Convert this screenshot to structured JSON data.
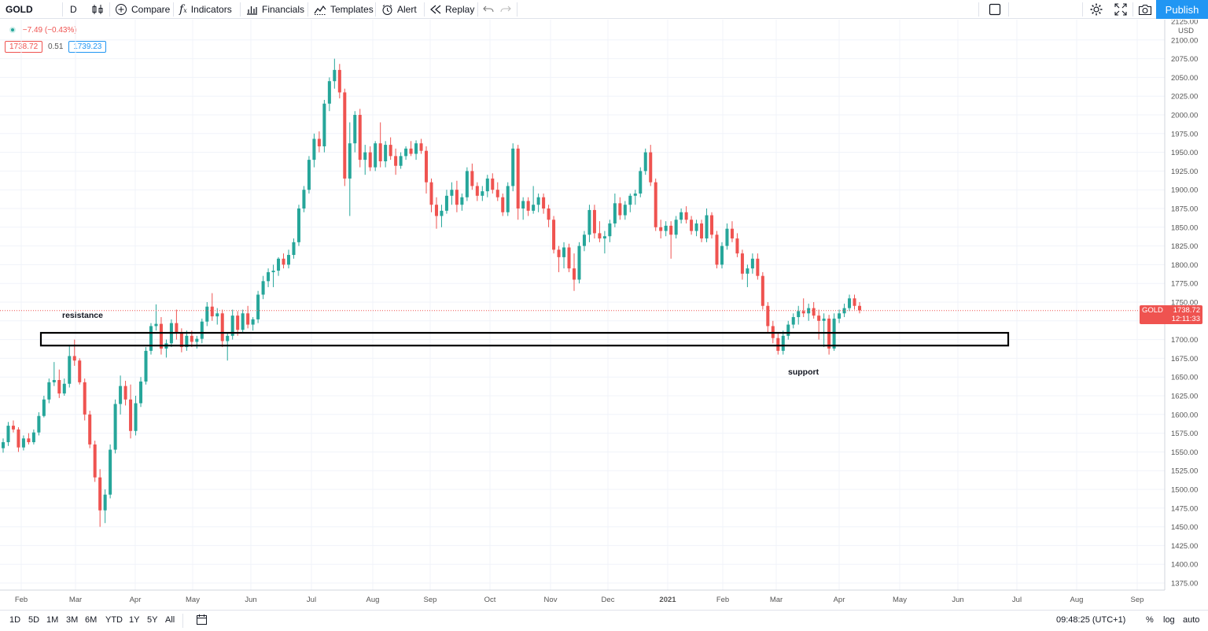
{
  "toolbar": {
    "symbol": "GOLD",
    "interval": "D",
    "compare": "Compare",
    "indicators": "Indicators",
    "financials": "Financials",
    "templates": "Templates",
    "alert": "Alert",
    "replay": "Replay",
    "publish": "Publish"
  },
  "legend": {
    "change": "−7.49 (−0.43%)",
    "bid": "1738.72",
    "spread": "0.51",
    "ask": "1739.23"
  },
  "price_axis": {
    "currency": "USD",
    "ticks": [
      "2125.00",
      "2100.00",
      "2075.00",
      "2050.00",
      "2025.00",
      "2000.00",
      "1975.00",
      "1950.00",
      "1925.00",
      "1900.00",
      "1875.00",
      "1850.00",
      "1825.00",
      "1800.00",
      "1775.00",
      "1750.00",
      "1725.00",
      "1700.00",
      "1675.00",
      "1650.00",
      "1625.00",
      "1600.00",
      "1575.00",
      "1550.00",
      "1525.00",
      "1500.00",
      "1475.00",
      "1450.00",
      "1425.00",
      "1400.00",
      "1375.00"
    ]
  },
  "time_axis": {
    "labels": [
      "Feb",
      "Mar",
      "Apr",
      "May",
      "Jun",
      "Jul",
      "Aug",
      "Sep",
      "Oct",
      "Nov",
      "Dec",
      "2021",
      "Feb",
      "Mar",
      "Apr",
      "May",
      "Jun",
      "Jul",
      "Aug",
      "Sep"
    ]
  },
  "price_tag": {
    "symbol": "GOLD",
    "price": "1738.72",
    "countdown": "12:11:33"
  },
  "annotations": {
    "resistance": "resistance",
    "support": "support"
  },
  "bottom": {
    "ranges": [
      "1D",
      "5D",
      "1M",
      "3M",
      "6M",
      "YTD",
      "1Y",
      "5Y",
      "All"
    ],
    "time": "09:48:25 (UTC+1)",
    "percent": "%",
    "log": "log",
    "auto": "auto"
  },
  "colors": {
    "up": "#26a69a",
    "down": "#ef5350",
    "accent": "#2196f3"
  },
  "chart_data": {
    "type": "candlestick",
    "series": [
      {
        "name": "GOLD",
        "values": [
          [
            1555,
            1568,
            1549,
            1563
          ],
          [
            1563,
            1590,
            1558,
            1585
          ],
          [
            1585,
            1592,
            1576,
            1580
          ],
          [
            1580,
            1583,
            1550,
            1556
          ],
          [
            1556,
            1572,
            1552,
            1568
          ],
          [
            1568,
            1575,
            1560,
            1563
          ],
          [
            1563,
            1580,
            1560,
            1576
          ],
          [
            1576,
            1603,
            1572,
            1598
          ],
          [
            1598,
            1625,
            1596,
            1620
          ],
          [
            1620,
            1648,
            1615,
            1643
          ],
          [
            1643,
            1670,
            1638,
            1646
          ],
          [
            1646,
            1660,
            1622,
            1628
          ],
          [
            1628,
            1648,
            1625,
            1641
          ],
          [
            1641,
            1693,
            1636,
            1678
          ],
          [
            1678,
            1700,
            1665,
            1672
          ],
          [
            1672,
            1675,
            1640,
            1643
          ],
          [
            1643,
            1648,
            1592,
            1600
          ],
          [
            1600,
            1605,
            1555,
            1560
          ],
          [
            1560,
            1565,
            1510,
            1516
          ],
          [
            1516,
            1527,
            1450,
            1472
          ],
          [
            1472,
            1500,
            1455,
            1493
          ],
          [
            1493,
            1560,
            1488,
            1553
          ],
          [
            1553,
            1620,
            1548,
            1614
          ],
          [
            1614,
            1652,
            1600,
            1638
          ],
          [
            1638,
            1645,
            1612,
            1620
          ],
          [
            1620,
            1640,
            1568,
            1578
          ],
          [
            1578,
            1625,
            1572,
            1615
          ],
          [
            1615,
            1650,
            1610,
            1644
          ],
          [
            1644,
            1690,
            1640,
            1685
          ],
          [
            1685,
            1722,
            1680,
            1718
          ],
          [
            1718,
            1747,
            1712,
            1721
          ],
          [
            1721,
            1730,
            1680,
            1688
          ],
          [
            1688,
            1700,
            1676,
            1695
          ],
          [
            1695,
            1727,
            1690,
            1722
          ],
          [
            1722,
            1740,
            1700,
            1708
          ],
          [
            1708,
            1715,
            1683,
            1690
          ],
          [
            1690,
            1712,
            1685,
            1705
          ],
          [
            1705,
            1712,
            1690,
            1697
          ],
          [
            1697,
            1705,
            1688,
            1701
          ],
          [
            1701,
            1728,
            1695,
            1724
          ],
          [
            1724,
            1750,
            1718,
            1744
          ],
          [
            1744,
            1762,
            1725,
            1731
          ],
          [
            1731,
            1742,
            1720,
            1735
          ],
          [
            1735,
            1740,
            1690,
            1698
          ],
          [
            1698,
            1710,
            1672,
            1705
          ],
          [
            1705,
            1740,
            1700,
            1732
          ],
          [
            1732,
            1738,
            1705,
            1713
          ],
          [
            1713,
            1740,
            1708,
            1735
          ],
          [
            1735,
            1745,
            1715,
            1720
          ],
          [
            1720,
            1730,
            1712,
            1727
          ],
          [
            1727,
            1765,
            1722,
            1760
          ],
          [
            1760,
            1785,
            1754,
            1778
          ],
          [
            1778,
            1795,
            1770,
            1790
          ],
          [
            1790,
            1800,
            1770,
            1792
          ],
          [
            1792,
            1810,
            1785,
            1808
          ],
          [
            1808,
            1815,
            1795,
            1800
          ],
          [
            1800,
            1820,
            1795,
            1813
          ],
          [
            1813,
            1835,
            1808,
            1830
          ],
          [
            1830,
            1880,
            1825,
            1875
          ],
          [
            1875,
            1905,
            1870,
            1900
          ],
          [
            1900,
            1945,
            1895,
            1940
          ],
          [
            1940,
            1975,
            1930,
            1968
          ],
          [
            1968,
            1978,
            1950,
            1958
          ],
          [
            1958,
            2020,
            1950,
            2015
          ],
          [
            2015,
            2050,
            2005,
            2045
          ],
          [
            2045,
            2075,
            2035,
            2060
          ],
          [
            2060,
            2068,
            2022,
            2030
          ],
          [
            2030,
            2035,
            1905,
            1915
          ],
          [
            1915,
            1990,
            1865,
            1962
          ],
          [
            1962,
            2005,
            1950,
            2000
          ],
          [
            2000,
            2008,
            1930,
            1940
          ],
          [
            1940,
            1960,
            1920,
            1950
          ],
          [
            1950,
            1958,
            1925,
            1930
          ],
          [
            1930,
            1965,
            1925,
            1962
          ],
          [
            1962,
            1990,
            1930,
            1938
          ],
          [
            1938,
            1965,
            1930,
            1960
          ],
          [
            1960,
            1970,
            1940,
            1945
          ],
          [
            1945,
            1955,
            1920,
            1932
          ],
          [
            1932,
            1950,
            1928,
            1945
          ],
          [
            1945,
            1958,
            1940,
            1955
          ],
          [
            1955,
            1965,
            1945,
            1948
          ],
          [
            1948,
            1966,
            1940,
            1962
          ],
          [
            1962,
            1968,
            1948,
            1952
          ],
          [
            1952,
            1958,
            1895,
            1910
          ],
          [
            1910,
            1915,
            1870,
            1880
          ],
          [
            1880,
            1890,
            1848,
            1865
          ],
          [
            1865,
            1880,
            1850,
            1872
          ],
          [
            1872,
            1900,
            1868,
            1892
          ],
          [
            1892,
            1910,
            1880,
            1900
          ],
          [
            1900,
            1912,
            1870,
            1880
          ],
          [
            1880,
            1895,
            1872,
            1890
          ],
          [
            1890,
            1930,
            1885,
            1925
          ],
          [
            1925,
            1935,
            1900,
            1905
          ],
          [
            1905,
            1910,
            1885,
            1892
          ],
          [
            1892,
            1905,
            1885,
            1898
          ],
          [
            1898,
            1920,
            1890,
            1915
          ],
          [
            1915,
            1922,
            1895,
            1900
          ],
          [
            1900,
            1910,
            1885,
            1890
          ],
          [
            1890,
            1895,
            1865,
            1870
          ],
          [
            1870,
            1910,
            1865,
            1905
          ],
          [
            1905,
            1962,
            1898,
            1955
          ],
          [
            1955,
            1960,
            1860,
            1875
          ],
          [
            1875,
            1890,
            1860,
            1885
          ],
          [
            1885,
            1890,
            1865,
            1872
          ],
          [
            1872,
            1905,
            1868,
            1880
          ],
          [
            1880,
            1895,
            1870,
            1890
          ],
          [
            1890,
            1895,
            1868,
            1875
          ],
          [
            1875,
            1880,
            1850,
            1860
          ],
          [
            1860,
            1865,
            1815,
            1820
          ],
          [
            1820,
            1825,
            1790,
            1810
          ],
          [
            1810,
            1830,
            1795,
            1823
          ],
          [
            1823,
            1828,
            1790,
            1795
          ],
          [
            1795,
            1815,
            1765,
            1780
          ],
          [
            1780,
            1830,
            1775,
            1825
          ],
          [
            1825,
            1845,
            1818,
            1840
          ],
          [
            1840,
            1880,
            1830,
            1873
          ],
          [
            1873,
            1880,
            1835,
            1842
          ],
          [
            1842,
            1858,
            1830,
            1835
          ],
          [
            1835,
            1845,
            1815,
            1838
          ],
          [
            1838,
            1860,
            1830,
            1855
          ],
          [
            1855,
            1895,
            1850,
            1882
          ],
          [
            1882,
            1890,
            1860,
            1866
          ],
          [
            1866,
            1885,
            1860,
            1880
          ],
          [
            1880,
            1895,
            1870,
            1892
          ],
          [
            1892,
            1900,
            1880,
            1895
          ],
          [
            1895,
            1930,
            1890,
            1925
          ],
          [
            1925,
            1955,
            1920,
            1950
          ],
          [
            1950,
            1960,
            1905,
            1910
          ],
          [
            1910,
            1915,
            1845,
            1850
          ],
          [
            1850,
            1860,
            1835,
            1845
          ],
          [
            1845,
            1858,
            1838,
            1852
          ],
          [
            1852,
            1858,
            1808,
            1840
          ],
          [
            1840,
            1865,
            1835,
            1860
          ],
          [
            1860,
            1875,
            1855,
            1870
          ],
          [
            1870,
            1878,
            1855,
            1860
          ],
          [
            1860,
            1865,
            1840,
            1845
          ],
          [
            1845,
            1860,
            1838,
            1855
          ],
          [
            1855,
            1860,
            1830,
            1835
          ],
          [
            1835,
            1875,
            1830,
            1866
          ],
          [
            1866,
            1870,
            1835,
            1840
          ],
          [
            1840,
            1845,
            1795,
            1800
          ],
          [
            1800,
            1830,
            1795,
            1825
          ],
          [
            1825,
            1855,
            1820,
            1848
          ],
          [
            1848,
            1858,
            1830,
            1835
          ],
          [
            1835,
            1842,
            1810,
            1815
          ],
          [
            1815,
            1820,
            1780,
            1788
          ],
          [
            1788,
            1800,
            1770,
            1795
          ],
          [
            1795,
            1815,
            1788,
            1808
          ],
          [
            1808,
            1815,
            1780,
            1785
          ],
          [
            1785,
            1790,
            1740,
            1745
          ],
          [
            1745,
            1750,
            1710,
            1718
          ],
          [
            1718,
            1725,
            1695,
            1702
          ],
          [
            1702,
            1710,
            1680,
            1685
          ],
          [
            1685,
            1712,
            1680,
            1705
          ],
          [
            1705,
            1725,
            1700,
            1720
          ],
          [
            1720,
            1735,
            1715,
            1730
          ],
          [
            1730,
            1745,
            1720,
            1738
          ],
          [
            1738,
            1755,
            1730,
            1735
          ],
          [
            1735,
            1748,
            1725,
            1742
          ],
          [
            1742,
            1750,
            1728,
            1732
          ],
          [
            1732,
            1740,
            1700,
            1725
          ],
          [
            1725,
            1735,
            1690,
            1728
          ],
          [
            1728,
            1733,
            1680,
            1688
          ],
          [
            1688,
            1735,
            1685,
            1728
          ],
          [
            1728,
            1740,
            1722,
            1735
          ],
          [
            1735,
            1748,
            1730,
            1742
          ],
          [
            1742,
            1760,
            1738,
            1755
          ],
          [
            1755,
            1760,
            1740,
            1745
          ],
          [
            1745,
            1750,
            1735,
            1739
          ]
        ]
      }
    ],
    "x_labels": [
      "Feb",
      "Mar",
      "Apr",
      "May",
      "Jun",
      "Jul",
      "Aug",
      "Sep",
      "Oct",
      "Nov",
      "Dec",
      "2021",
      "Feb",
      "Mar",
      "Apr",
      "May",
      "Jun",
      "Jul",
      "Aug",
      "Sep"
    ],
    "y_range": [
      1362,
      2135
    ],
    "last_price": 1738.72
  }
}
